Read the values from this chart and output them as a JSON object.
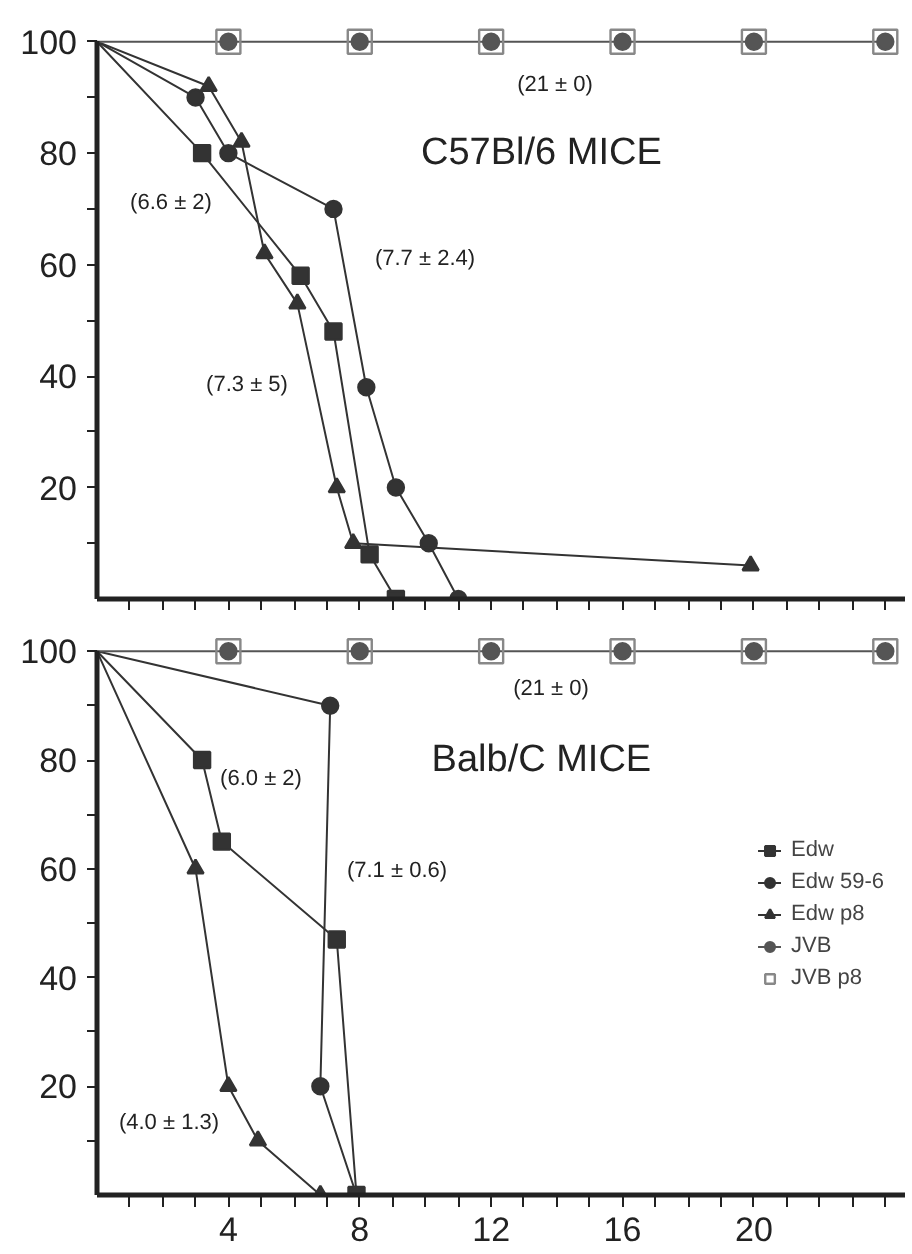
{
  "chart_data": [
    {
      "type": "line",
      "title": "C57Bl/6 MICE",
      "tick_labels": "y",
      "grid": false,
      "legend": false,
      "line_style": "solid",
      "xlim": [
        0,
        24.6
      ],
      "ylim": [
        0,
        100
      ],
      "xticks": [
        {
          "value": 1,
          "label": null
        },
        {
          "value": 2,
          "label": null
        },
        {
          "value": 3,
          "label": null
        },
        {
          "value": 4,
          "label": null
        },
        {
          "value": 5,
          "label": null
        },
        {
          "value": 6,
          "label": null
        },
        {
          "value": 7,
          "label": null
        },
        {
          "value": 8,
          "label": null
        },
        {
          "value": 9,
          "label": null
        },
        {
          "value": 10,
          "label": null
        },
        {
          "value": 11,
          "label": null
        },
        {
          "value": 12,
          "label": null
        },
        {
          "value": 13,
          "label": null
        },
        {
          "value": 14,
          "label": null
        },
        {
          "value": 15,
          "label": null
        },
        {
          "value": 16,
          "label": null
        },
        {
          "value": 17,
          "label": null
        },
        {
          "value": 18,
          "label": null
        },
        {
          "value": 19,
          "label": null
        },
        {
          "value": 20,
          "label": null
        },
        {
          "value": 21,
          "label": null
        },
        {
          "value": 22,
          "label": null
        },
        {
          "value": 23,
          "label": null
        },
        {
          "value": 24,
          "label": null
        }
      ],
      "yticks": [
        {
          "value": 10,
          "label": null
        },
        20,
        {
          "value": 30,
          "label": null
        },
        40,
        {
          "value": 50,
          "label": null
        },
        60,
        {
          "value": 70,
          "label": null
        },
        80,
        {
          "value": 90,
          "label": null
        },
        100
      ],
      "series": [
        {
          "color": "#333333",
          "marker": "square",
          "x": [
            0,
            3.2,
            6.2,
            7.2,
            8.3,
            9.1
          ],
          "values": [
            100,
            80,
            58,
            48,
            8,
            0
          ]
        },
        {
          "color": "#333333",
          "marker": "circle",
          "x": [
            0,
            3.0,
            4.0,
            7.2,
            8.2,
            9.1,
            10.1,
            11.0
          ],
          "values": [
            100,
            90,
            80,
            70,
            38,
            20,
            10,
            0
          ]
        },
        {
          "color": "#333333",
          "marker": "triangle",
          "x": [
            0,
            3.4,
            4.4,
            5.1,
            6.1,
            7.3,
            7.8,
            19.9
          ],
          "values": [
            100,
            92,
            82,
            62,
            53,
            20,
            10,
            6
          ]
        },
        {
          "color": "#555555",
          "marker": "circle",
          "x": [
            0,
            4,
            8,
            12,
            16,
            20,
            24
          ],
          "values": [
            100,
            100,
            100,
            100,
            100,
            100,
            100
          ]
        },
        {
          "type": "scatter",
          "color": "#888888",
          "marker": "square",
          "x": [
            4,
            8,
            12,
            16,
            20,
            24
          ],
          "values": [
            100,
            100,
            100,
            100,
            100,
            100
          ]
        }
      ],
      "annotations": [
        "(21 ± 0)",
        "(6.6 ± 2)",
        "(7.7 ± 2.4)",
        "(7.3 ± 5)"
      ]
    },
    {
      "type": "line",
      "title": "Balb/C MICE",
      "grid": false,
      "legend": "right",
      "line_style": "solid",
      "xlim": [
        0,
        24.6
      ],
      "ylim": [
        0,
        100
      ],
      "xticks": [
        {
          "value": 1,
          "label": null
        },
        {
          "value": 2,
          "label": null
        },
        {
          "value": 3,
          "label": null
        },
        4,
        {
          "value": 5,
          "label": null
        },
        {
          "value": 6,
          "label": null
        },
        {
          "value": 7,
          "label": null
        },
        8,
        {
          "value": 9,
          "label": null
        },
        {
          "value": 10,
          "label": null
        },
        {
          "value": 11,
          "label": null
        },
        12,
        {
          "value": 13,
          "label": null
        },
        {
          "value": 14,
          "label": null
        },
        {
          "value": 15,
          "label": null
        },
        16,
        {
          "value": 17,
          "label": null
        },
        {
          "value": 18,
          "label": null
        },
        {
          "value": 19,
          "label": null
        },
        20,
        {
          "value": 21,
          "label": null
        },
        {
          "value": 22,
          "label": null
        },
        {
          "value": 23,
          "label": null
        },
        {
          "value": 24,
          "label": null
        }
      ],
      "yticks": [
        {
          "value": 10,
          "label": null
        },
        20,
        {
          "value": 30,
          "label": null
        },
        40,
        {
          "value": 50,
          "label": null
        },
        60,
        {
          "value": 70,
          "label": null
        },
        80,
        {
          "value": 90,
          "label": null
        },
        100
      ],
      "series": [
        {
          "name": "Edw",
          "color": "#333333",
          "marker": "square",
          "x": [
            0,
            3.2,
            3.8,
            7.3,
            7.9
          ],
          "values": [
            100,
            80,
            65,
            47,
            0
          ]
        },
        {
          "name": "Edw 59-6",
          "color": "#333333",
          "marker": "circle",
          "x": [
            0,
            7.1,
            6.8,
            7.9
          ],
          "values": [
            100,
            90,
            20,
            0
          ]
        },
        {
          "name": "Edw p8",
          "color": "#333333",
          "marker": "triangle",
          "x": [
            0,
            3.0,
            4.0,
            4.9,
            6.8
          ],
          "values": [
            100,
            60,
            20,
            10,
            0
          ]
        },
        {
          "name": "JVB",
          "color": "#555555",
          "marker": "circle",
          "x": [
            0,
            4,
            8,
            12,
            16,
            20,
            24
          ],
          "values": [
            100,
            100,
            100,
            100,
            100,
            100,
            100
          ]
        },
        {
          "name": "JVB p8",
          "type": "scatter",
          "color": "#888888",
          "marker": "square",
          "x": [
            4,
            8,
            12,
            16,
            20,
            24
          ],
          "values": [
            100,
            100,
            100,
            100,
            100,
            100
          ]
        }
      ],
      "annotations": [
        "(21 ± 0)",
        "(6.0 ± 2)",
        "(7.1 ± 0.6)",
        "(4.0 ± 1.3)"
      ]
    }
  ]
}
